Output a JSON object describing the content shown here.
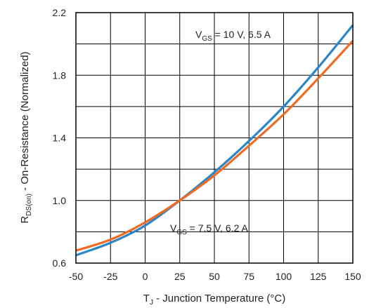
{
  "chart_data": {
    "type": "line",
    "x": [
      -50,
      -25,
      0,
      25,
      50,
      75,
      100,
      125,
      150
    ],
    "xlim": [
      -50,
      150
    ],
    "ylim": [
      0.6,
      2.2
    ],
    "xticks": [
      -50,
      -25,
      0,
      25,
      50,
      75,
      100,
      125,
      150
    ],
    "xtick_labels": [
      "-50",
      "-25",
      "0",
      "25",
      "50",
      "75",
      "100",
      "125",
      "150"
    ],
    "yticks": [
      0.6,
      1.0,
      1.4,
      1.8,
      2.2
    ],
    "ytick_labels": [
      "0.6",
      "1.0",
      "1.4",
      "1.8",
      "2.2"
    ],
    "grid": true,
    "xlabel": {
      "main": "T",
      "sub": "J",
      "rest": " - Junction Temperature (°C)"
    },
    "ylabel": {
      "main": "R",
      "sub": "DS(on)",
      "rest": " - On-Resistance (Normalized)"
    },
    "series": [
      {
        "color": "#2b86c8",
        "values": [
          0.65,
          0.73,
          0.84,
          1.0,
          1.18,
          1.38,
          1.6,
          1.85,
          2.12
        ]
      },
      {
        "color": "#ef6a23",
        "values": [
          0.68,
          0.75,
          0.86,
          1.0,
          1.16,
          1.35,
          1.55,
          1.78,
          2.02
        ]
      }
    ],
    "annotations": [
      {
        "main": "V",
        "sub": "GS",
        "rest": " = 10 V, 6.5 A"
      },
      {
        "main": "V",
        "sub": "GS",
        "rest": " = 7.5 V, 6.2 A"
      }
    ]
  }
}
